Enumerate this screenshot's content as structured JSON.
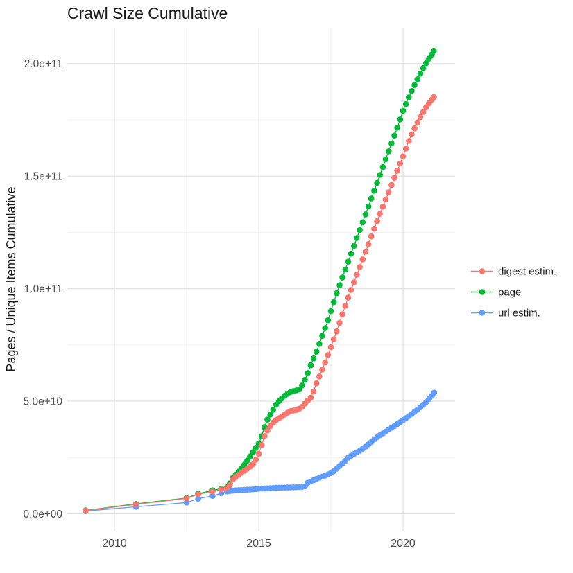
{
  "title": "Crawl Size Cumulative",
  "colors": {
    "background": "#FFFFFF",
    "grid_major": "#E2E2E2",
    "grid_minor": "#F0F0F0",
    "tick_text": "#4D4D4D",
    "text": "#1A1A1A",
    "digest": "#F8766D",
    "page": "#00BA38",
    "url": "#619CFF"
  },
  "legend": [
    {
      "label": "digest estim.",
      "color": "#F8766D"
    },
    {
      "label": "page",
      "color": "#00BA38"
    },
    {
      "label": "url estim.",
      "color": "#619CFF"
    }
  ],
  "chart_data": {
    "type": "scatter",
    "title": "Crawl Size Cumulative",
    "xlabel": "",
    "ylabel": "Pages / Unique Items Cumulative",
    "x_unit": "year (decimal)",
    "y_unit": "items; point values stored in billions (multiply by 1e9)",
    "x_tick_labels": [
      "2010",
      "2015",
      "2020"
    ],
    "x_tick_values": [
      2010,
      2015,
      2020
    ],
    "x_minor_ticks": [
      2012.5,
      2017.5
    ],
    "y_tick_labels": [
      "0.0e+00",
      "5.0e+10",
      "1.0e+11",
      "1.5e+11",
      "2.0e+11"
    ],
    "y_tick_values_e9": [
      0,
      50,
      100,
      150,
      200
    ],
    "y_minor_ticks_e9": [
      25,
      75,
      125,
      175
    ],
    "xlim": [
      2008.4,
      2021.7
    ],
    "ylim_e9": [
      -8,
      216
    ],
    "grid": true,
    "legend_position": "right-center",
    "marker": "point-with-line",
    "series": [
      {
        "name": "digest estim.",
        "color": "#F8766D",
        "points_year_value_e9": [
          [
            2009.0,
            1.4
          ],
          [
            2010.75,
            4.2
          ],
          [
            2012.5,
            6.8
          ],
          [
            2012.9,
            8.6
          ],
          [
            2013.4,
            9.9
          ],
          [
            2013.7,
            10.8
          ],
          [
            2013.9,
            11.4
          ],
          [
            2014.0,
            12.7
          ],
          [
            2014.1,
            15.2
          ],
          [
            2014.2,
            16.3
          ],
          [
            2014.3,
            17.3
          ],
          [
            2014.4,
            18.2
          ],
          [
            2014.5,
            19.1
          ],
          [
            2014.6,
            20.0
          ],
          [
            2014.7,
            20.9
          ],
          [
            2014.8,
            22.0
          ],
          [
            2014.9,
            24.0
          ],
          [
            2015.0,
            26.6
          ],
          [
            2015.1,
            30.5
          ],
          [
            2015.2,
            34.5
          ],
          [
            2015.3,
            37.0
          ],
          [
            2015.4,
            38.9
          ],
          [
            2015.5,
            40.5
          ],
          [
            2015.6,
            41.6
          ],
          [
            2015.7,
            42.4
          ],
          [
            2015.8,
            43.2
          ],
          [
            2015.9,
            44.0
          ],
          [
            2016.0,
            44.9
          ],
          [
            2016.1,
            45.6
          ],
          [
            2016.2,
            45.9
          ],
          [
            2016.3,
            46.1
          ],
          [
            2016.4,
            46.6
          ],
          [
            2016.5,
            47.5
          ],
          [
            2016.6,
            48.9
          ],
          [
            2016.7,
            50.3
          ],
          [
            2016.8,
            51.6
          ],
          [
            2016.9,
            54.3
          ],
          [
            2017.0,
            58.0
          ],
          [
            2017.1,
            61.0
          ],
          [
            2017.2,
            64.0
          ],
          [
            2017.3,
            67.2
          ],
          [
            2017.4,
            70.5
          ],
          [
            2017.5,
            74.0
          ],
          [
            2017.6,
            77.5
          ],
          [
            2017.7,
            81.0
          ],
          [
            2017.8,
            84.8
          ],
          [
            2017.9,
            88.6
          ],
          [
            2018.0,
            92.4
          ],
          [
            2018.1,
            96.0
          ],
          [
            2018.2,
            99.4
          ],
          [
            2018.3,
            102.8
          ],
          [
            2018.4,
            106.2
          ],
          [
            2018.5,
            109.6
          ],
          [
            2018.6,
            113.0
          ],
          [
            2018.7,
            116.4
          ],
          [
            2018.8,
            119.8
          ],
          [
            2018.9,
            123.2
          ],
          [
            2019.0,
            126.6
          ],
          [
            2019.1,
            130.0
          ],
          [
            2019.2,
            133.2
          ],
          [
            2019.3,
            136.4
          ],
          [
            2019.4,
            139.6
          ],
          [
            2019.5,
            142.8
          ],
          [
            2019.6,
            146.0
          ],
          [
            2019.7,
            149.2
          ],
          [
            2019.8,
            152.4
          ],
          [
            2019.9,
            155.6
          ],
          [
            2020.0,
            158.8
          ],
          [
            2020.1,
            162.2
          ],
          [
            2020.2,
            165.6
          ],
          [
            2020.3,
            168.5
          ],
          [
            2020.4,
            171.2
          ],
          [
            2020.5,
            173.8
          ],
          [
            2020.6,
            176.2
          ],
          [
            2020.7,
            178.5
          ],
          [
            2020.8,
            180.6
          ],
          [
            2020.9,
            182.4
          ],
          [
            2021.0,
            184.0
          ],
          [
            2021.07,
            185.1
          ]
        ]
      },
      {
        "name": "page",
        "color": "#00BA38",
        "points_year_value_e9": [
          [
            2009.0,
            1.5
          ],
          [
            2010.75,
            4.4
          ],
          [
            2012.5,
            7.0
          ],
          [
            2012.9,
            8.9
          ],
          [
            2013.4,
            10.4
          ],
          [
            2013.7,
            11.2
          ],
          [
            2013.9,
            11.8
          ],
          [
            2014.0,
            13.5
          ],
          [
            2014.1,
            15.9
          ],
          [
            2014.2,
            17.3
          ],
          [
            2014.3,
            18.7
          ],
          [
            2014.4,
            20.0
          ],
          [
            2014.5,
            21.8
          ],
          [
            2014.6,
            23.6
          ],
          [
            2014.7,
            25.5
          ],
          [
            2014.8,
            27.4
          ],
          [
            2014.9,
            29.3
          ],
          [
            2015.0,
            31.2
          ],
          [
            2015.1,
            34.5
          ],
          [
            2015.2,
            38.5
          ],
          [
            2015.3,
            41.8
          ],
          [
            2015.4,
            44.0
          ],
          [
            2015.5,
            46.2
          ],
          [
            2015.6,
            48.5
          ],
          [
            2015.7,
            50.0
          ],
          [
            2015.8,
            51.3
          ],
          [
            2015.9,
            52.4
          ],
          [
            2016.0,
            53.3
          ],
          [
            2016.1,
            54.1
          ],
          [
            2016.2,
            54.5
          ],
          [
            2016.3,
            54.8
          ],
          [
            2016.4,
            55.2
          ],
          [
            2016.5,
            57.0
          ],
          [
            2016.6,
            59.5
          ],
          [
            2016.7,
            62.5
          ],
          [
            2016.8,
            66.0
          ],
          [
            2016.9,
            69.0
          ],
          [
            2017.0,
            72.0
          ],
          [
            2017.1,
            75.5
          ],
          [
            2017.2,
            79.0
          ],
          [
            2017.3,
            82.5
          ],
          [
            2017.4,
            86.0
          ],
          [
            2017.5,
            90.0
          ],
          [
            2017.6,
            94.0
          ],
          [
            2017.7,
            98.0
          ],
          [
            2017.8,
            101.5
          ],
          [
            2017.9,
            105.0
          ],
          [
            2018.0,
            108.5
          ],
          [
            2018.1,
            112.0
          ],
          [
            2018.2,
            115.5
          ],
          [
            2018.3,
            119.0
          ],
          [
            2018.4,
            122.5
          ],
          [
            2018.5,
            126.0
          ],
          [
            2018.6,
            129.5
          ],
          [
            2018.7,
            133.0
          ],
          [
            2018.8,
            136.5
          ],
          [
            2018.9,
            140.0
          ],
          [
            2019.0,
            143.5
          ],
          [
            2019.1,
            147.0
          ],
          [
            2019.2,
            150.5
          ],
          [
            2019.3,
            154.0
          ],
          [
            2019.4,
            157.5
          ],
          [
            2019.5,
            161.0
          ],
          [
            2019.6,
            164.5
          ],
          [
            2019.7,
            168.0
          ],
          [
            2019.8,
            171.5
          ],
          [
            2019.9,
            175.2
          ],
          [
            2020.0,
            179.0
          ],
          [
            2020.1,
            182.0
          ],
          [
            2020.2,
            185.0
          ],
          [
            2020.3,
            187.8
          ],
          [
            2020.4,
            190.5
          ],
          [
            2020.5,
            193.0
          ],
          [
            2020.6,
            195.5
          ],
          [
            2020.7,
            198.0
          ],
          [
            2020.8,
            200.2
          ],
          [
            2020.9,
            202.2
          ],
          [
            2021.0,
            204.0
          ],
          [
            2021.07,
            205.7
          ]
        ]
      },
      {
        "name": "url estim.",
        "color": "#619CFF",
        "points_year_value_e9": [
          [
            2009.0,
            1.2
          ],
          [
            2010.75,
            3.1
          ],
          [
            2012.5,
            5.0
          ],
          [
            2012.9,
            6.7
          ],
          [
            2013.4,
            7.9
          ],
          [
            2013.7,
            9.1
          ],
          [
            2013.9,
            9.9
          ],
          [
            2014.0,
            10.1
          ],
          [
            2014.1,
            10.25
          ],
          [
            2014.2,
            10.4
          ],
          [
            2014.3,
            10.5
          ],
          [
            2014.4,
            10.55
          ],
          [
            2014.5,
            10.6
          ],
          [
            2014.6,
            10.7
          ],
          [
            2014.7,
            10.75
          ],
          [
            2014.8,
            10.85
          ],
          [
            2014.9,
            11.0
          ],
          [
            2015.0,
            11.1
          ],
          [
            2015.1,
            11.2
          ],
          [
            2015.2,
            11.25
          ],
          [
            2015.3,
            11.3
          ],
          [
            2015.4,
            11.4
          ],
          [
            2015.5,
            11.45
          ],
          [
            2015.6,
            11.5
          ],
          [
            2015.7,
            11.55
          ],
          [
            2015.8,
            11.6
          ],
          [
            2015.9,
            11.62
          ],
          [
            2016.0,
            11.65
          ],
          [
            2016.1,
            11.7
          ],
          [
            2016.2,
            11.75
          ],
          [
            2016.3,
            11.8
          ],
          [
            2016.4,
            11.85
          ],
          [
            2016.5,
            11.95
          ],
          [
            2016.6,
            12.2
          ],
          [
            2016.7,
            13.8
          ],
          [
            2016.8,
            14.3
          ],
          [
            2016.9,
            14.9
          ],
          [
            2017.0,
            15.5
          ],
          [
            2017.1,
            16.0
          ],
          [
            2017.2,
            16.5
          ],
          [
            2017.3,
            17.0
          ],
          [
            2017.4,
            17.5
          ],
          [
            2017.5,
            18.1
          ],
          [
            2017.6,
            19.0
          ],
          [
            2017.7,
            20.0
          ],
          [
            2017.8,
            21.2
          ],
          [
            2017.9,
            22.4
          ],
          [
            2018.0,
            23.5
          ],
          [
            2018.1,
            24.9
          ],
          [
            2018.2,
            25.8
          ],
          [
            2018.3,
            26.6
          ],
          [
            2018.4,
            27.3
          ],
          [
            2018.5,
            28.0
          ],
          [
            2018.6,
            28.9
          ],
          [
            2018.7,
            29.8
          ],
          [
            2018.8,
            30.8
          ],
          [
            2018.9,
            31.9
          ],
          [
            2019.0,
            33.0
          ],
          [
            2019.1,
            34.0
          ],
          [
            2019.2,
            34.9
          ],
          [
            2019.3,
            35.7
          ],
          [
            2019.4,
            36.5
          ],
          [
            2019.5,
            37.4
          ],
          [
            2019.6,
            38.2
          ],
          [
            2019.7,
            39.0
          ],
          [
            2019.8,
            39.9
          ],
          [
            2019.9,
            40.7
          ],
          [
            2020.0,
            41.6
          ],
          [
            2020.1,
            42.5
          ],
          [
            2020.2,
            43.4
          ],
          [
            2020.3,
            44.3
          ],
          [
            2020.4,
            45.3
          ],
          [
            2020.5,
            46.3
          ],
          [
            2020.6,
            47.3
          ],
          [
            2020.7,
            48.4
          ],
          [
            2020.8,
            49.6
          ],
          [
            2020.9,
            51.0
          ],
          [
            2021.0,
            52.4
          ],
          [
            2021.08,
            53.8
          ]
        ]
      }
    ]
  }
}
